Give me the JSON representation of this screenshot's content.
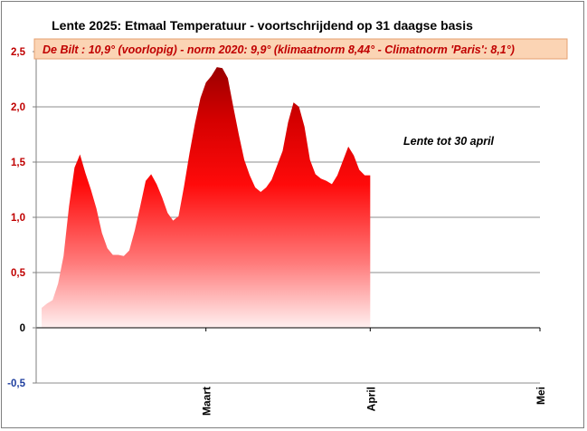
{
  "chart_data": {
    "type": "area",
    "title": "Lente 2025:  Etmaal Temperatuur - voortschrijdend op 31 daagse basis",
    "subtitle": "De Bilt : 10,9° (voorlopig) - norm 2020: 9,9°  (klimaatnorm 8,44° - Climatnorm 'Paris': 8,1°)",
    "annotation": "Lente tot 30 april",
    "ylim": [
      -0.5,
      2.5
    ],
    "yticks": [
      {
        "value": 2.5,
        "label": "2,5",
        "color": "#c00000"
      },
      {
        "value": 2.0,
        "label": "2,0",
        "color": "#c00000"
      },
      {
        "value": 1.5,
        "label": "1,5",
        "color": "#c00000"
      },
      {
        "value": 1.0,
        "label": "1,0",
        "color": "#c00000"
      },
      {
        "value": 0.5,
        "label": "0,5",
        "color": "#c00000"
      },
      {
        "value": 0.0,
        "label": "0",
        "color": "#000000"
      },
      {
        "value": -0.5,
        "label": "-0,5",
        "color": "#1f3f9f"
      }
    ],
    "xlim": [
      0,
      92
    ],
    "month_ticks": [
      {
        "day": 31,
        "label": "Maart"
      },
      {
        "day": 61,
        "label": "April"
      },
      {
        "day": 92,
        "label": "Mei"
      }
    ],
    "grid": true,
    "colors": {
      "fill_top": "#c00000",
      "fill_mid": "#ff0000",
      "fill_bottom": "#ffe6e6",
      "subtitle_bg": "#fbd4b4",
      "subtitle_border": "#e4a070"
    },
    "series": [
      {
        "x": [
          1,
          2,
          3,
          4,
          5,
          6,
          7,
          8,
          9,
          10,
          11,
          12,
          13,
          14,
          15,
          16,
          17,
          18,
          19,
          20,
          21,
          22,
          23,
          24,
          25,
          26,
          27,
          28,
          29,
          30,
          31,
          32,
          33,
          34,
          35,
          36,
          37,
          38,
          39,
          40,
          41,
          42,
          43,
          44,
          45,
          46,
          47,
          48,
          49,
          50,
          51,
          52,
          53,
          54,
          55,
          56,
          57,
          58,
          59,
          60,
          61
        ],
        "values": [
          0.18,
          0.22,
          0.25,
          0.4,
          0.65,
          1.1,
          1.45,
          1.57,
          1.4,
          1.25,
          1.08,
          0.86,
          0.72,
          0.66,
          0.66,
          0.65,
          0.7,
          0.88,
          1.1,
          1.33,
          1.39,
          1.3,
          1.18,
          1.04,
          0.97,
          1.01,
          1.28,
          1.58,
          1.85,
          2.08,
          2.22,
          2.28,
          2.36,
          2.35,
          2.26,
          2.0,
          1.75,
          1.52,
          1.38,
          1.27,
          1.23,
          1.27,
          1.34,
          1.47,
          1.6,
          1.86,
          2.04,
          2.0,
          1.82,
          1.52,
          1.39,
          1.35,
          1.33,
          1.3,
          1.38,
          1.51,
          1.64,
          1.56,
          1.43,
          1.38,
          1.38
        ]
      }
    ]
  }
}
